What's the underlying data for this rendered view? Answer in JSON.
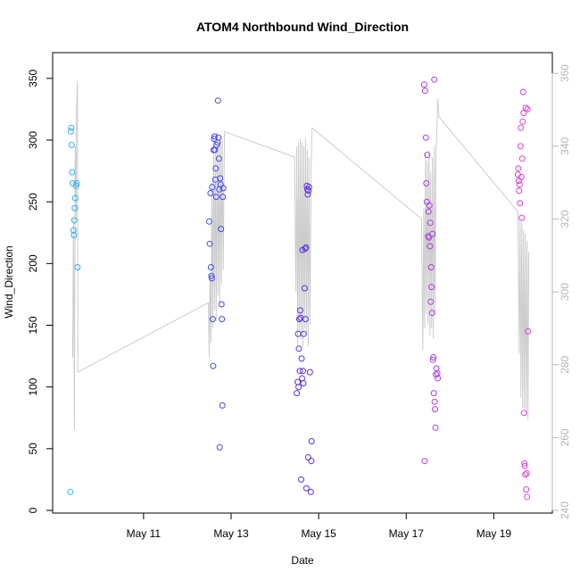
{
  "chart_data": {
    "type": "scatter",
    "title": "ATOM4 Northbound Wind_Direction",
    "xlabel": "Date",
    "ylabel": "Wind_Direction",
    "x_units": "days since May 10",
    "xlim": [
      -0.75,
      9.95
    ],
    "ylim": [
      0,
      360
    ],
    "y2lim": [
      240,
      362
    ],
    "x_ticks": [
      {
        "value": 1,
        "label": "May 11"
      },
      {
        "value": 3,
        "label": "May 13"
      },
      {
        "value": 5,
        "label": "May 15"
      },
      {
        "value": 7,
        "label": "May 17"
      },
      {
        "value": 9,
        "label": "May 19"
      }
    ],
    "y_ticks": [
      0,
      50,
      100,
      150,
      200,
      250,
      300,
      350
    ],
    "y2_ticks": [
      240,
      260,
      280,
      300,
      320,
      340,
      360
    ],
    "grid": false,
    "series": [
      {
        "name": "Wind_Direction (points)",
        "axis": "left",
        "color_scale": [
          "#29b6f6",
          "#3f51f5",
          "#5a2fe0",
          "#a23ce6",
          "#e040d8"
        ],
        "points": [
          [
            -0.67,
            15
          ],
          [
            -0.66,
            307
          ],
          [
            -0.65,
            310
          ],
          [
            -0.64,
            296
          ],
          [
            -0.63,
            274
          ],
          [
            -0.62,
            265
          ],
          [
            -0.6,
            227
          ],
          [
            -0.59,
            223
          ],
          [
            -0.58,
            235
          ],
          [
            -0.57,
            245
          ],
          [
            -0.56,
            253
          ],
          [
            -0.54,
            263
          ],
          [
            -0.53,
            265
          ],
          [
            -0.51,
            197
          ],
          [
            2.5,
            234
          ],
          [
            2.51,
            216
          ],
          [
            2.53,
            257
          ],
          [
            2.54,
            197
          ],
          [
            2.55,
            190
          ],
          [
            2.56,
            188
          ],
          [
            2.57,
            262
          ],
          [
            2.58,
            155
          ],
          [
            2.59,
            117
          ],
          [
            2.6,
            292
          ],
          [
            2.61,
            301
          ],
          [
            2.62,
            303
          ],
          [
            2.63,
            292
          ],
          [
            2.64,
            268
          ],
          [
            2.65,
            277
          ],
          [
            2.66,
            254
          ],
          [
            2.67,
            296
          ],
          [
            2.69,
            298
          ],
          [
            2.7,
            332
          ],
          [
            2.71,
            302
          ],
          [
            2.72,
            285
          ],
          [
            2.73,
            260
          ],
          [
            2.74,
            51
          ],
          [
            2.75,
            269
          ],
          [
            2.76,
            264
          ],
          [
            2.77,
            228
          ],
          [
            2.78,
            167
          ],
          [
            2.79,
            155
          ],
          [
            2.8,
            85
          ],
          [
            2.81,
            254
          ],
          [
            2.82,
            261
          ],
          [
            4.5,
            95
          ],
          [
            4.52,
            104
          ],
          [
            4.53,
            143
          ],
          [
            4.54,
            100
          ],
          [
            4.55,
            131
          ],
          [
            4.56,
            155
          ],
          [
            4.57,
            113
          ],
          [
            4.58,
            162
          ],
          [
            4.59,
            156
          ],
          [
            4.6,
            25
          ],
          [
            4.61,
            123
          ],
          [
            4.62,
            107
          ],
          [
            4.63,
            211
          ],
          [
            4.64,
            113
          ],
          [
            4.65,
            103
          ],
          [
            4.66,
            143
          ],
          [
            4.68,
            180
          ],
          [
            4.69,
            212
          ],
          [
            4.7,
            155
          ],
          [
            4.71,
            213
          ],
          [
            4.72,
            18
          ],
          [
            4.73,
            263
          ],
          [
            4.74,
            260
          ],
          [
            4.75,
            256
          ],
          [
            4.76,
            43
          ],
          [
            4.77,
            259
          ],
          [
            4.78,
            262
          ],
          [
            4.8,
            112
          ],
          [
            4.82,
            15
          ],
          [
            4.83,
            40
          ],
          [
            4.84,
            56
          ],
          [
            7.41,
            345
          ],
          [
            7.42,
            40
          ],
          [
            7.43,
            340
          ],
          [
            7.45,
            302
          ],
          [
            7.46,
            265
          ],
          [
            7.47,
            250
          ],
          [
            7.48,
            288
          ],
          [
            7.5,
            222
          ],
          [
            7.51,
            242
          ],
          [
            7.52,
            221
          ],
          [
            7.53,
            247
          ],
          [
            7.54,
            214
          ],
          [
            7.55,
            233
          ],
          [
            7.56,
            169
          ],
          [
            7.57,
            197
          ],
          [
            7.58,
            181
          ],
          [
            7.59,
            160
          ],
          [
            7.6,
            224
          ],
          [
            7.61,
            122
          ],
          [
            7.62,
            124
          ],
          [
            7.63,
            95
          ],
          [
            7.64,
            349
          ],
          [
            7.65,
            88
          ],
          [
            7.66,
            82
          ],
          [
            7.67,
            67
          ],
          [
            7.68,
            110
          ],
          [
            7.69,
            115
          ],
          [
            7.71,
            111
          ],
          [
            7.72,
            107
          ],
          [
            9.55,
            272
          ],
          [
            9.56,
            277
          ],
          [
            9.57,
            267
          ],
          [
            9.58,
            259
          ],
          [
            9.59,
            264
          ],
          [
            9.6,
            249
          ],
          [
            9.61,
            295
          ],
          [
            9.62,
            310
          ],
          [
            9.63,
            270
          ],
          [
            9.64,
            237
          ],
          [
            9.65,
            285
          ],
          [
            9.66,
            315
          ],
          [
            9.67,
            339
          ],
          [
            9.68,
            322
          ],
          [
            9.69,
            79
          ],
          [
            9.7,
            38
          ],
          [
            9.71,
            36
          ],
          [
            9.72,
            29
          ],
          [
            9.73,
            326
          ],
          [
            9.74,
            17
          ],
          [
            9.75,
            30
          ],
          [
            9.76,
            11
          ],
          [
            9.77,
            325
          ],
          [
            9.78,
            145
          ]
        ]
      },
      {
        "name": "Wind_Direction (line)",
        "axis": "right",
        "color": "#cccccc",
        "values": [
          [
            -0.62,
            282
          ],
          [
            -0.6,
            320
          ],
          [
            -0.58,
            262
          ],
          [
            -0.56,
            340
          ],
          [
            -0.54,
            320
          ],
          [
            -0.53,
            350
          ],
          [
            -0.51,
            358
          ],
          [
            -0.5,
            278
          ],
          [
            2.48,
            297
          ],
          [
            2.5,
            282
          ],
          [
            2.52,
            305
          ],
          [
            2.54,
            286
          ],
          [
            2.56,
            330
          ],
          [
            2.58,
            290
          ],
          [
            2.6,
            343
          ],
          [
            2.62,
            295
          ],
          [
            2.64,
            338
          ],
          [
            2.66,
            292
          ],
          [
            2.68,
            344
          ],
          [
            2.7,
            299
          ],
          [
            2.72,
            340
          ],
          [
            2.74,
            297
          ],
          [
            2.76,
            343
          ],
          [
            2.78,
            302
          ],
          [
            2.8,
            342
          ],
          [
            2.82,
            306
          ],
          [
            2.85,
            344
          ],
          [
            4.45,
            337
          ],
          [
            4.48,
            300
          ],
          [
            4.5,
            340
          ],
          [
            4.52,
            285
          ],
          [
            4.54,
            341
          ],
          [
            4.56,
            289
          ],
          [
            4.58,
            342
          ],
          [
            4.6,
            287
          ],
          [
            4.62,
            341
          ],
          [
            4.64,
            285
          ],
          [
            4.66,
            340
          ],
          [
            4.68,
            290
          ],
          [
            4.7,
            342
          ],
          [
            4.72,
            288
          ],
          [
            4.74,
            339
          ],
          [
            4.76,
            285
          ],
          [
            4.78,
            337
          ],
          [
            4.8,
            291
          ],
          [
            4.83,
            336
          ],
          [
            4.85,
            345
          ],
          [
            7.35,
            320
          ],
          [
            7.38,
            284
          ],
          [
            7.4,
            323
          ],
          [
            7.42,
            290
          ],
          [
            7.44,
            338
          ],
          [
            7.46,
            294
          ],
          [
            7.48,
            336
          ],
          [
            7.5,
            291
          ],
          [
            7.52,
            339
          ],
          [
            7.54,
            288
          ],
          [
            7.56,
            333
          ],
          [
            7.58,
            290
          ],
          [
            7.6,
            337
          ],
          [
            7.62,
            287
          ],
          [
            7.64,
            340
          ],
          [
            7.66,
            294
          ],
          [
            7.68,
            338
          ],
          [
            7.7,
            344
          ],
          [
            7.72,
            353
          ],
          [
            7.75,
            348
          ],
          [
            9.55,
            322
          ],
          [
            9.58,
            283
          ],
          [
            9.6,
            320
          ],
          [
            9.62,
            271
          ],
          [
            9.64,
            319
          ],
          [
            9.66,
            268
          ],
          [
            9.68,
            317
          ],
          [
            9.7,
            268
          ],
          [
            9.72,
            316
          ],
          [
            9.74,
            266
          ],
          [
            9.76,
            314
          ],
          [
            9.78,
            265
          ],
          [
            9.8,
            311
          ]
        ]
      }
    ]
  }
}
